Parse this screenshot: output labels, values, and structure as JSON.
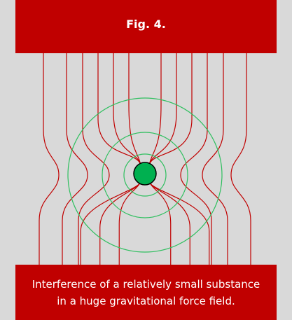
{
  "figure": {
    "title": "Fig. 4.",
    "caption": [
      "Interference of a relatively small substance",
      "in a huge gravitational force field."
    ]
  }
}
